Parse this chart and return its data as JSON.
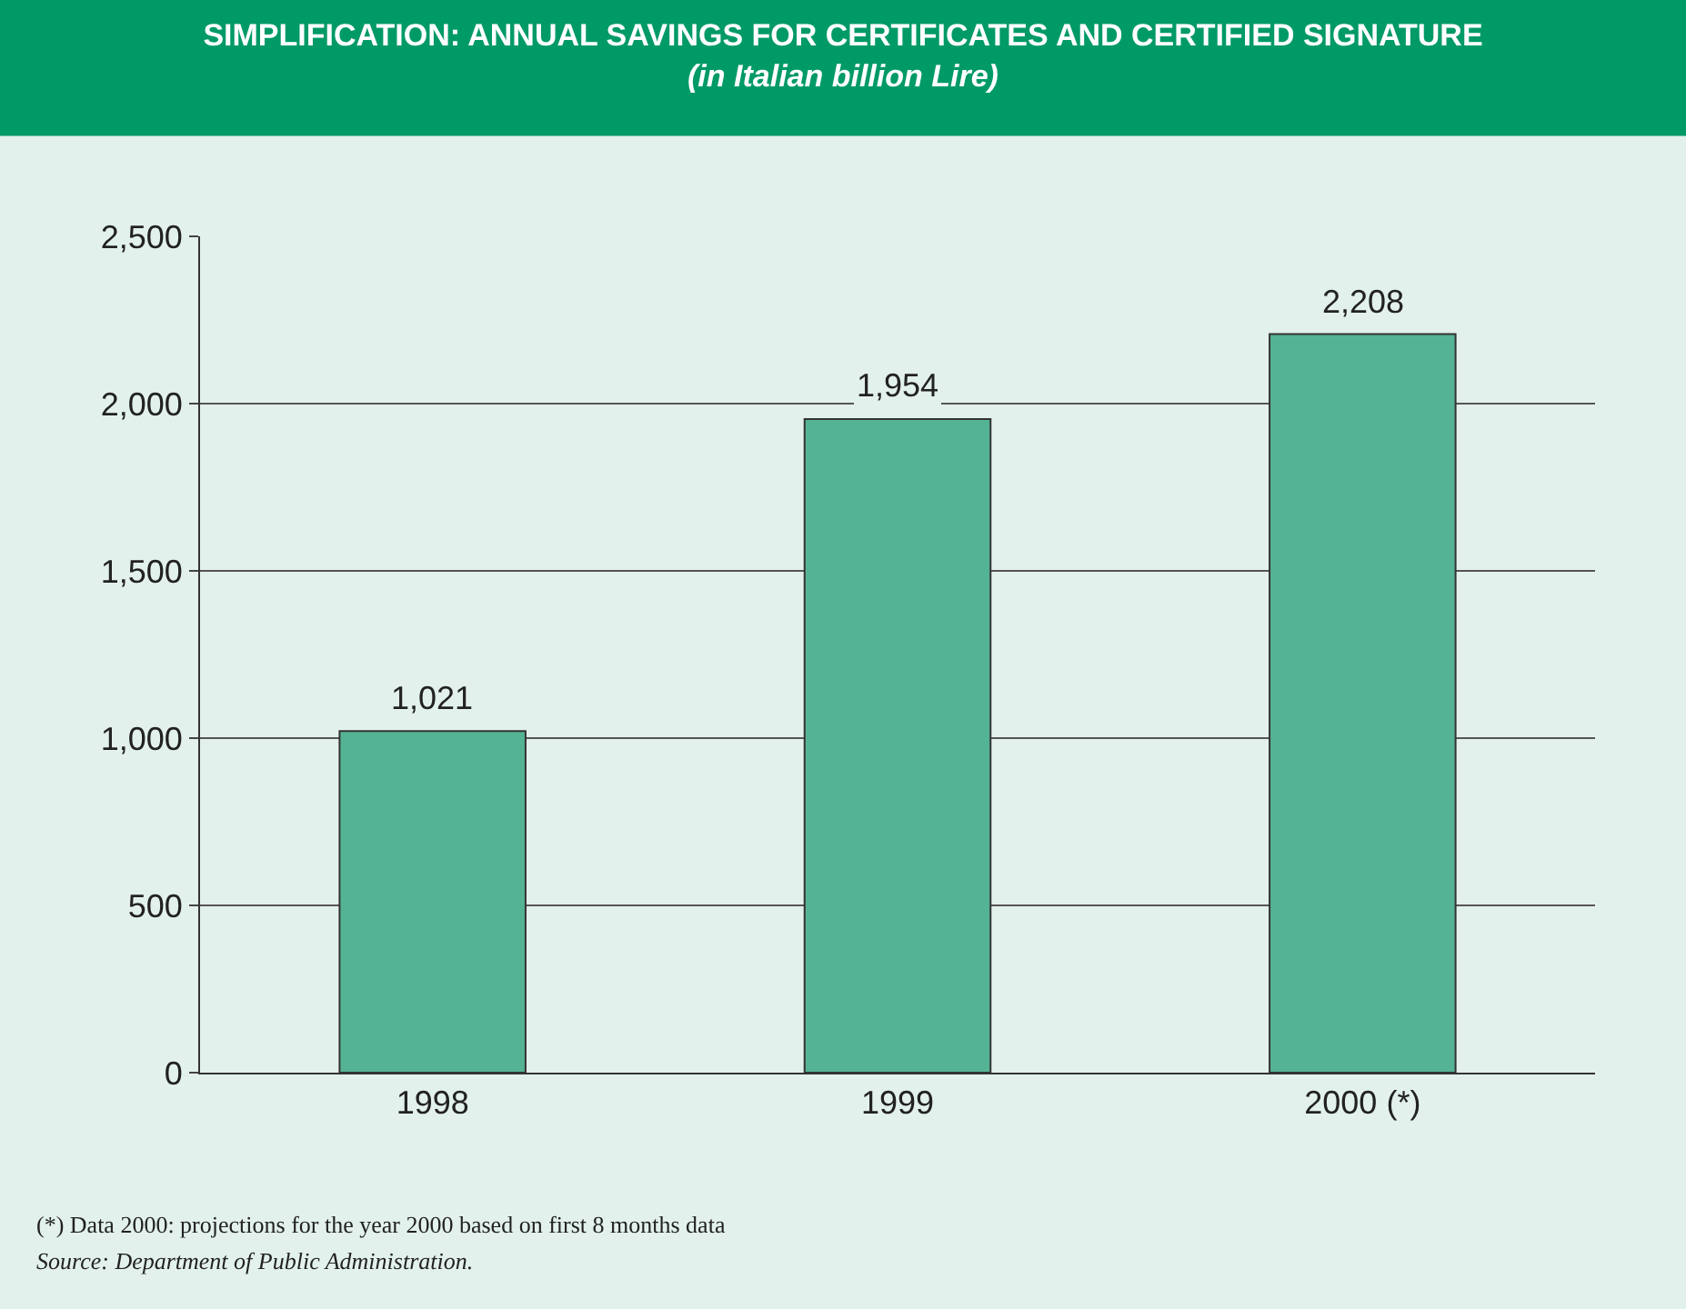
{
  "chart_data": {
    "type": "bar",
    "title": "SIMPLIFICATION: ANNUAL SAVINGS FOR CERTIFICATES AND CERTIFIED SIGNATURE",
    "subtitle": "(in Italian billion Lire)",
    "categories": [
      "1998",
      "1999",
      "2000 (*)"
    ],
    "values": [
      1021,
      1954,
      2208
    ],
    "value_labels": [
      "1,021",
      "1,954",
      "2,208"
    ],
    "color": "#55b395",
    "ylim": [
      0,
      2500
    ],
    "yticks": [
      {
        "value": 0,
        "label": "0"
      },
      {
        "value": 500,
        "label": "500"
      },
      {
        "value": 1000,
        "label": "1,000"
      },
      {
        "value": 1500,
        "label": "1,500"
      },
      {
        "value": 2000,
        "label": "2,000"
      },
      {
        "value": 2500,
        "label": "2,500"
      }
    ],
    "grid": "y",
    "legend": false,
    "annotations": [
      "(*) Data 2000: projections for the year 2000 based on first 8 months data",
      "Source: Department of Public Administration."
    ]
  }
}
